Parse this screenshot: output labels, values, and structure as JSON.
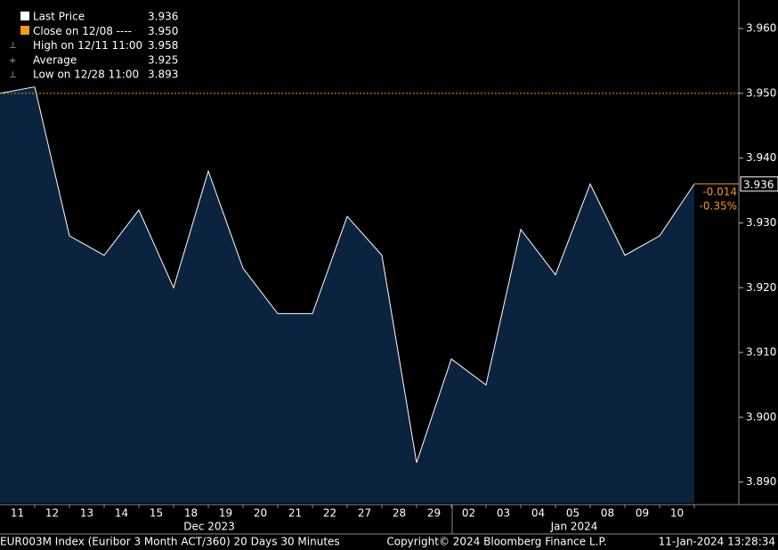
{
  "chart_data": {
    "type": "area",
    "categories": [
      "11",
      "12",
      "13",
      "14",
      "15",
      "18",
      "19",
      "20",
      "21",
      "22",
      "27",
      "28",
      "29",
      "02",
      "03",
      "04",
      "05",
      "08",
      "09",
      "10"
    ],
    "series": [
      {
        "name": "Last Price",
        "color": "#ffffff",
        "fill": "#0c2340",
        "values": [
          3.951,
          3.928,
          3.925,
          3.932,
          3.92,
          3.938,
          3.923,
          3.916,
          3.916,
          3.931,
          3.925,
          3.893,
          3.909,
          3.905,
          3.929,
          3.922,
          3.936,
          3.925,
          3.928,
          3.936
        ]
      }
    ],
    "ylim": [
      3.8868,
      3.9644
    ],
    "yticks": [
      {
        "value": 3.89,
        "label": "3.890"
      },
      {
        "value": 3.9,
        "label": "3.900"
      },
      {
        "value": 3.91,
        "label": "3.910"
      },
      {
        "value": 3.92,
        "label": "3.920"
      },
      {
        "value": 3.93,
        "label": "3.930"
      },
      {
        "value": 3.94,
        "label": "3.940"
      },
      {
        "value": 3.95,
        "label": "3.950"
      },
      {
        "value": 3.96,
        "label": "3.960"
      }
    ],
    "reference_line": {
      "value": 3.95,
      "color": "#f39c12"
    },
    "legend": [
      {
        "label": "Last Price",
        "value": "3.936"
      },
      {
        "label": "Close on 12/08 ----",
        "value": "3.950"
      },
      {
        "label": "High on 12/11 11:00",
        "value": "3.958"
      },
      {
        "label": "Average",
        "value": "3.925"
      },
      {
        "label": "Low on 12/28 11:00",
        "value": "3.893"
      }
    ],
    "change_labels": [
      "-0.014",
      "-0.35%"
    ],
    "months": [
      "Dec 2023",
      "Jan 2024"
    ],
    "footer": {
      "left": "EUR003M Index (Euribor 3 Month ACT/360) 20 Days 30 Minutes",
      "center": "Copyright© 2024 Bloomberg Finance L.P.",
      "right": "11-Jan-2024 13:28:34"
    }
  }
}
